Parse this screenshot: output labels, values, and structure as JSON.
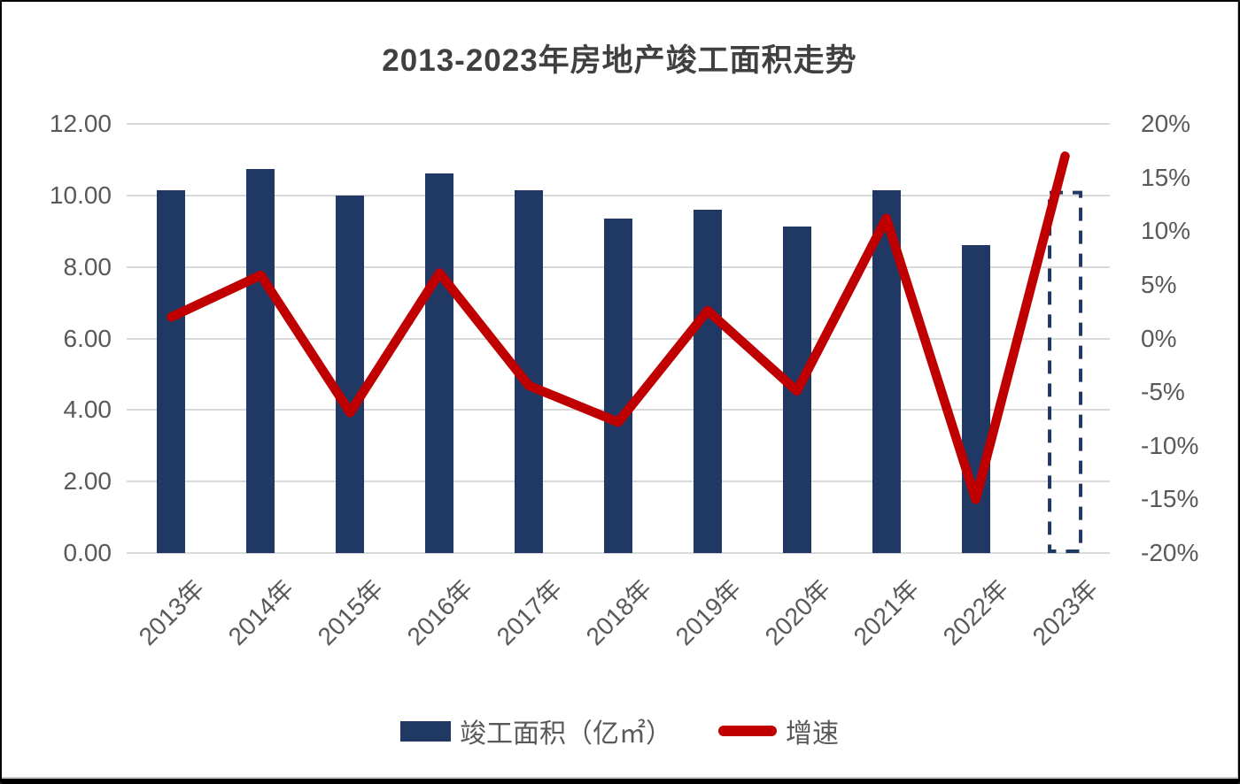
{
  "title": "2013-2023年房地产竣工面积走势",
  "chart_data": {
    "type": "bar",
    "subtype": "combo-bar-line-dual-axis",
    "title": "2013-2023年房地产竣工面积走势",
    "categories": [
      "2013年",
      "2014年",
      "2015年",
      "2016年",
      "2017年",
      "2018年",
      "2019年",
      "2020年",
      "2021年",
      "2022年",
      "2023年"
    ],
    "series": [
      {
        "name": "竣工面积（亿㎡）",
        "type": "bar",
        "axis": "left",
        "color": "#1f3864",
        "values": [
          10.14,
          10.75,
          10.0,
          10.61,
          10.15,
          9.36,
          9.59,
          9.12,
          10.14,
          8.62,
          10.08
        ],
        "dashed_bar_index": 10
      },
      {
        "name": "增速",
        "type": "line",
        "axis": "right",
        "color": "#c00000",
        "values": [
          2.0,
          5.9,
          -6.9,
          6.1,
          -4.4,
          -7.8,
          2.6,
          -4.9,
          11.2,
          -15.0,
          17.0
        ]
      }
    ],
    "left_axis": {
      "min": 0,
      "max": 12,
      "ticks": [
        "12.00",
        "10.00",
        "8.00",
        "6.00",
        "4.00",
        "2.00",
        "0.00"
      ]
    },
    "right_axis": {
      "min": -20,
      "max": 20,
      "ticks": [
        "20%",
        "15%",
        "10%",
        "5%",
        "0%",
        "-5%",
        "-10%",
        "-15%",
        "-20%"
      ]
    },
    "grid": true,
    "legend_position": "bottom"
  },
  "legend": {
    "bar_label": "竣工面积（亿㎡）",
    "line_label": "增速"
  },
  "colors": {
    "bar": "#1f3864",
    "line": "#c00000",
    "grid": "#d9d9d9",
    "axis_text": "#595959",
    "title_text": "#404040",
    "background": "#ffffff",
    "frame": "#000000"
  }
}
